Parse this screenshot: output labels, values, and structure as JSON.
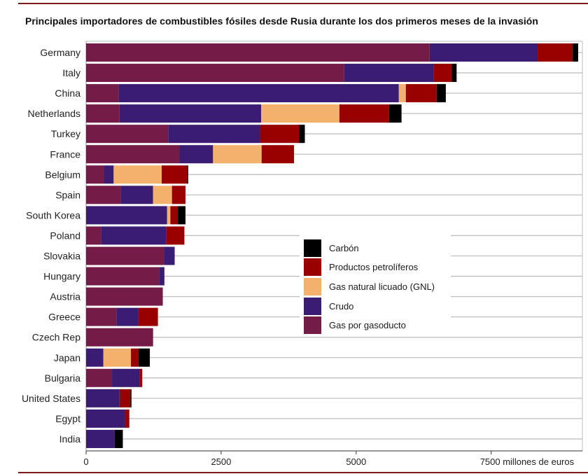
{
  "title": "Principales importadores de combustibles fósiles desde Rusia durante los dos primeros meses de la invasión",
  "colors": {
    "gas_pipeline": "#741b47",
    "crude": "#3b1c73",
    "lng": "#f4b16b",
    "oil_products": "#990000",
    "coal": "#000000",
    "gridline": "#bfbfbf",
    "axis": "#333333",
    "rule": "#7a1a1a"
  },
  "chart_data": {
    "type": "bar",
    "orientation": "horizontal",
    "stacked": true,
    "title": "Principales importadores de combustibles fósiles desde Rusia durante los dos primeros meses de la invasión",
    "xlabel": "millones de euros",
    "xlim": [
      0,
      9200
    ],
    "xticks": [
      0,
      2500,
      5000,
      7500
    ],
    "xtick_labels": [
      "0",
      "2500",
      "5000",
      "7500 millones de euros"
    ],
    "grid": true,
    "legend_position": "center",
    "categories": [
      "Germany",
      "Italy",
      "China",
      "Netherlands",
      "Turkey",
      "France",
      "Belgium",
      "Spain",
      "South Korea",
      "Poland",
      "Slovakia",
      "Hungary",
      "Austria",
      "Greece",
      "Czech Rep",
      "Japan",
      "Bulgaria",
      "United States",
      "Egypt",
      "India"
    ],
    "series": [
      {
        "name": "Gas por gasoducto",
        "key": "gas_pipeline",
        "values": [
          6360,
          4780,
          600,
          620,
          1520,
          1730,
          330,
          640,
          0,
          280,
          1440,
          1350,
          1420,
          560,
          1240,
          0,
          480,
          0,
          0,
          0
        ]
      },
      {
        "name": "Crudo",
        "key": "crude",
        "values": [
          2000,
          1660,
          5190,
          2620,
          1700,
          620,
          180,
          600,
          1500,
          1200,
          200,
          100,
          0,
          400,
          0,
          320,
          510,
          620,
          720,
          530
        ]
      },
      {
        "name": "Gas natural licuado (GNL)",
        "key": "lng",
        "values": [
          0,
          0,
          130,
          1450,
          0,
          900,
          890,
          350,
          60,
          0,
          0,
          0,
          0,
          0,
          0,
          510,
          0,
          0,
          0,
          0
        ]
      },
      {
        "name": "Productos petrolíferos",
        "key": "oil_products",
        "values": [
          650,
          330,
          570,
          920,
          720,
          600,
          470,
          250,
          140,
          340,
          0,
          0,
          0,
          370,
          0,
          140,
          50,
          200,
          80,
          0
        ]
      },
      {
        "name": "Carbón",
        "key": "coal",
        "values": [
          100,
          90,
          170,
          230,
          110,
          0,
          20,
          0,
          140,
          0,
          0,
          0,
          0,
          0,
          0,
          210,
          0,
          20,
          0,
          150
        ]
      }
    ]
  },
  "legend": {
    "items": [
      {
        "label": "Carbón",
        "key": "coal"
      },
      {
        "label": "Productos petrolíferos",
        "key": "oil_products"
      },
      {
        "label": "Gas natural licuado (GNL)",
        "key": "lng"
      },
      {
        "label": "Crudo",
        "key": "crude"
      },
      {
        "label": "Gas por gasoducto",
        "key": "gas_pipeline"
      }
    ]
  }
}
